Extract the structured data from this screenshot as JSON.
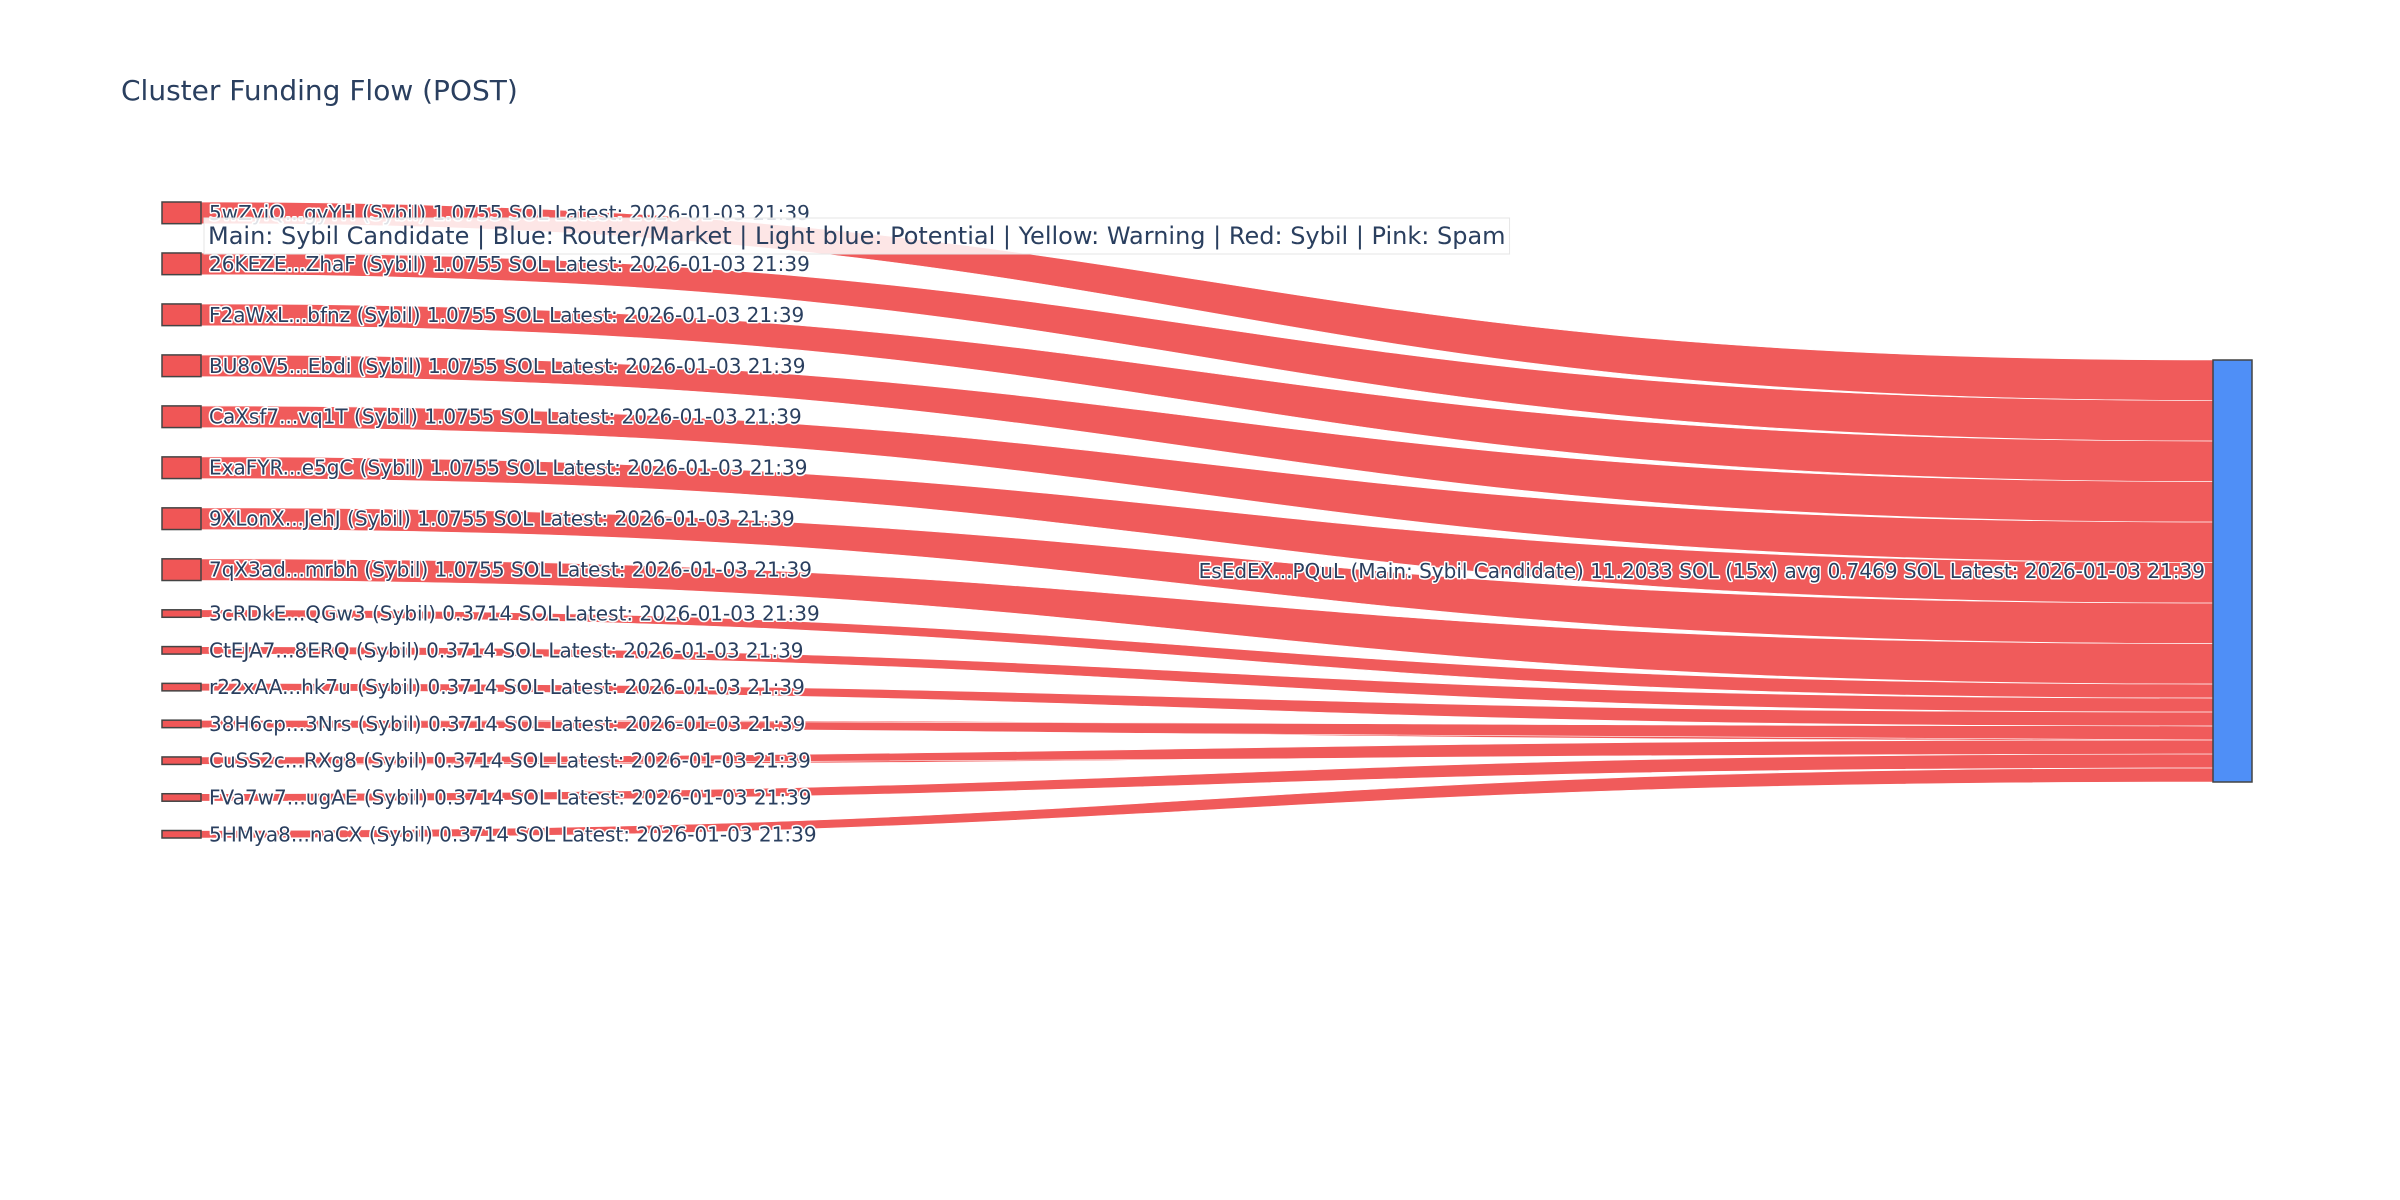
{
  "title": "Cluster Funding Flow (POST)",
  "legend_note": "Main: Sybil Candidate  |  Blue: Router/Market | Light blue: Potential | Yellow: Warning | Red: Sybil | Pink: Spam",
  "colors": {
    "sybil": "#f05656",
    "main": "#4f8ff7",
    "text": "#2a3f5f"
  },
  "chart_data": {
    "type": "sankey",
    "title": "Cluster Funding Flow (POST)",
    "target": {
      "id": "target",
      "label": "EsEdEX...PQuL (Main: Sybil Candidate) 11.2033 SOL (15x) avg 0.7469 SOL Latest: 2026-01-03 21:39",
      "value": 11.2033,
      "color": "#4f8ff7"
    },
    "sources": [
      {
        "id": "s1",
        "label": "5wZyiQ...gyYH (Sybil) 1.0755 SOL Latest: 2026-01-03 21:39",
        "value": 1.0755,
        "color": "#f05656"
      },
      {
        "id": "s2",
        "label": "26KEZE...ZhaF (Sybil) 1.0755 SOL Latest: 2026-01-03 21:39",
        "value": 1.0755,
        "color": "#f05656"
      },
      {
        "id": "s3",
        "label": "F2aWxL...bfnz (Sybil) 1.0755 SOL Latest: 2026-01-03 21:39",
        "value": 1.0755,
        "color": "#f05656"
      },
      {
        "id": "s4",
        "label": "BU8oV5...Ebdi (Sybil) 1.0755 SOL Latest: 2026-01-03 21:39",
        "value": 1.0755,
        "color": "#f05656"
      },
      {
        "id": "s5",
        "label": "CaXsf7...vq1T (Sybil) 1.0755 SOL Latest: 2026-01-03 21:39",
        "value": 1.0755,
        "color": "#f05656"
      },
      {
        "id": "s6",
        "label": "ExaFYR...e5gC (Sybil) 1.0755 SOL Latest: 2026-01-03 21:39",
        "value": 1.0755,
        "color": "#f05656"
      },
      {
        "id": "s7",
        "label": "9XLonX...JehJ (Sybil) 1.0755 SOL Latest: 2026-01-03 21:39",
        "value": 1.0755,
        "color": "#f05656"
      },
      {
        "id": "s8",
        "label": "7qX3ad...mrbh (Sybil) 1.0755 SOL Latest: 2026-01-03 21:39",
        "value": 1.0755,
        "color": "#f05656"
      },
      {
        "id": "s9",
        "label": "3cRDkE...QGw3 (Sybil) 0.3714 SOL Latest: 2026-01-03 21:39",
        "value": 0.3714,
        "color": "#f05656"
      },
      {
        "id": "s10",
        "label": "CtEJA7...8ERQ (Sybil) 0.3714 SOL Latest: 2026-01-03 21:39",
        "value": 0.3714,
        "color": "#f05656"
      },
      {
        "id": "s11",
        "label": "r22xAA...hk7u (Sybil) 0.3714 SOL Latest: 2026-01-03 21:39",
        "value": 0.3714,
        "color": "#f05656"
      },
      {
        "id": "s12",
        "label": "38H6cp...3Nrs (Sybil) 0.3714 SOL Latest: 2026-01-03 21:39",
        "value": 0.3714,
        "color": "#f05656"
      },
      {
        "id": "s13",
        "label": "CuSS2c...RXg8 (Sybil) 0.3714 SOL Latest: 2026-01-03 21:39",
        "value": 0.3714,
        "color": "#f05656"
      },
      {
        "id": "s14",
        "label": "FVa7w7...ugAE (Sybil) 0.3714 SOL Latest: 2026-01-03 21:39",
        "value": 0.3714,
        "color": "#f05656"
      },
      {
        "id": "s15",
        "label": "5HMya8...naCX (Sybil) 0.3714 SOL Latest: 2026-01-03 21:39",
        "value": 0.3714,
        "color": "#f05656"
      }
    ]
  }
}
